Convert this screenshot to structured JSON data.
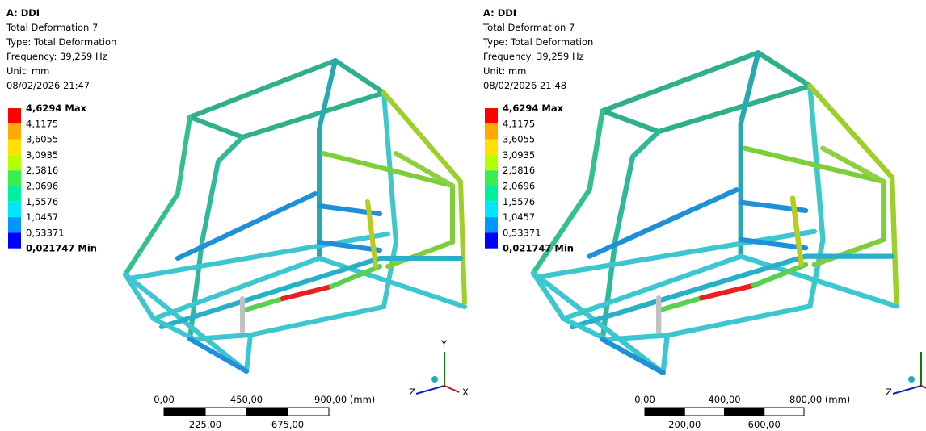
{
  "panels": [
    {
      "title": "A: DDI",
      "lines": [
        "Total Deformation 7",
        "Type: Total Deformation",
        "Frequency: 39,259 Hz",
        "Unit: mm",
        "08/02/2026 21:47"
      ],
      "legend": {
        "labels": [
          "4,6294 Max",
          "4,1175",
          "3,6055",
          "3,0935",
          "2,5816",
          "2,0696",
          "1,5576",
          "1,0457",
          "0,53371",
          "0,021747 Min"
        ],
        "colors": [
          "#ff0000",
          "#ffaa00",
          "#ffe100",
          "#b4ff00",
          "#38f04a",
          "#00f0a0",
          "#00e6ff",
          "#0096ff",
          "#0000ff"
        ]
      },
      "scale": {
        "top": [
          "0,00",
          "450,00",
          "900,00 (mm)"
        ],
        "bottom": [
          "225,00",
          "675,00"
        ]
      },
      "axes": [
        "Y",
        "Z",
        "X"
      ]
    },
    {
      "title": "A: DDI",
      "lines": [
        "Total Deformation 7",
        "Type: Total Deformation",
        "Frequency: 39,259 Hz",
        "Unit: mm",
        "08/02/2026 21:48"
      ],
      "legend": {
        "labels": [
          "4,6294 Max",
          "4,1175",
          "3,6055",
          "3,0935",
          "2,5816",
          "2,0696",
          "1,5576",
          "1,0457",
          "0,53371",
          "0,021747 Min"
        ],
        "colors": [
          "#ff0000",
          "#ffaa00",
          "#ffe100",
          "#b4ff00",
          "#38f04a",
          "#00f0a0",
          "#00e6ff",
          "#0096ff",
          "#0000ff"
        ]
      },
      "scale": {
        "top": [
          "0,00",
          "400,00",
          "800,00 (mm)"
        ],
        "bottom": [
          "200,00",
          "600,00"
        ]
      },
      "axes": [
        "Z"
      ]
    }
  ]
}
